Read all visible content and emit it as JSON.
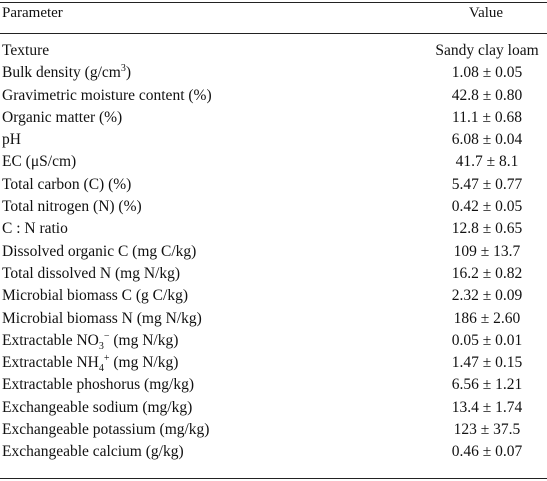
{
  "header": {
    "parameter": "Parameter",
    "value": "Value"
  },
  "rows": [
    {
      "parameter": "Texture",
      "value": "Sandy clay loam"
    },
    {
      "parameter": "Bulk density (g/cm",
      "sup": "3",
      "parameter_tail": ")",
      "value": "1.08 ± 0.05"
    },
    {
      "parameter": "Gravimetric moisture content (%)",
      "value": "42.8 ± 0.80"
    },
    {
      "parameter": "Organic matter (%)",
      "value": "11.1 ± 0.68"
    },
    {
      "parameter": "pH",
      "value": "6.08 ± 0.04"
    },
    {
      "parameter": "EC (μS/cm)",
      "value": "41.7 ± 8.1"
    },
    {
      "parameter": "Total carbon (C) (%)",
      "value": "5.47 ± 0.77"
    },
    {
      "parameter": "Total nitrogen (N) (%)",
      "value": "0.42 ± 0.05"
    },
    {
      "parameter": "C : N ratio",
      "value": "12.8 ± 0.65"
    },
    {
      "parameter": "Dissolved organic C (mg C/kg)",
      "value": "109 ± 13.7"
    },
    {
      "parameter": "Total dissolved N (mg N/kg)",
      "value": "16.2 ± 0.82"
    },
    {
      "parameter": "Microbial biomass C (g C/kg)",
      "value": "2.32 ± 0.09"
    },
    {
      "parameter": "Microbial biomass N (mg N/kg)",
      "value": "186 ± 2.60"
    },
    {
      "parameter": "Extractable NO",
      "sub": "3",
      "sup": "−",
      "parameter_tail": " (mg N/kg)",
      "value": "0.05 ± 0.01"
    },
    {
      "parameter": "Extractable NH",
      "sub": "4",
      "sup": "+",
      "parameter_tail": " (mg N/kg)",
      "value": "1.47 ± 0.15"
    },
    {
      "parameter": "Extractable phoshorus (mg/kg)",
      "value": "6.56 ± 1.21"
    },
    {
      "parameter": "Exchangeable sodium (mg/kg)",
      "value": "13.4 ± 1.74"
    },
    {
      "parameter": "Exchangeable potassium (mg/kg)",
      "value": "123 ± 37.5"
    },
    {
      "parameter": "Exchangeable calcium (g/kg)",
      "value": "0.46 ± 0.07"
    }
  ]
}
